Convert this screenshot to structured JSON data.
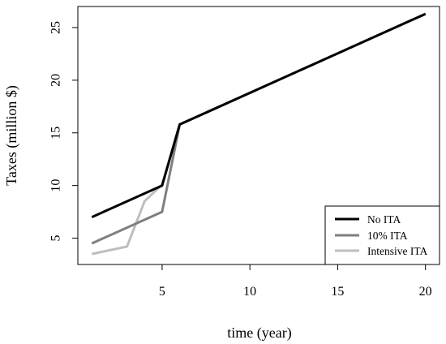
{
  "chart_data": {
    "type": "line",
    "xlabel": "time (year)",
    "ylabel": "Taxes (million $)",
    "xlim": [
      0.2,
      20.8
    ],
    "ylim": [
      2.5,
      27
    ],
    "x_ticks": [
      5,
      10,
      15,
      20
    ],
    "y_ticks": [
      5,
      10,
      15,
      20,
      25
    ],
    "grid": false,
    "legend_position": "bottom-right",
    "series": [
      {
        "name": "No ITA",
        "color": "#000000",
        "points": [
          [
            1,
            7.0
          ],
          [
            5,
            10.0
          ],
          [
            6,
            15.8
          ],
          [
            20,
            26.3
          ]
        ]
      },
      {
        "name": "10% ITA",
        "color": "#7f7f7f",
        "points": [
          [
            1,
            4.5
          ],
          [
            5,
            7.5
          ],
          [
            6,
            15.8
          ],
          [
            20,
            26.3
          ]
        ]
      },
      {
        "name": "Intensive ITA",
        "color": "#bebebe",
        "points": [
          [
            1,
            3.5
          ],
          [
            3,
            4.2
          ],
          [
            4,
            8.5
          ],
          [
            5,
            10.1
          ],
          [
            6,
            15.8
          ],
          [
            20,
            26.3
          ]
        ]
      }
    ]
  }
}
